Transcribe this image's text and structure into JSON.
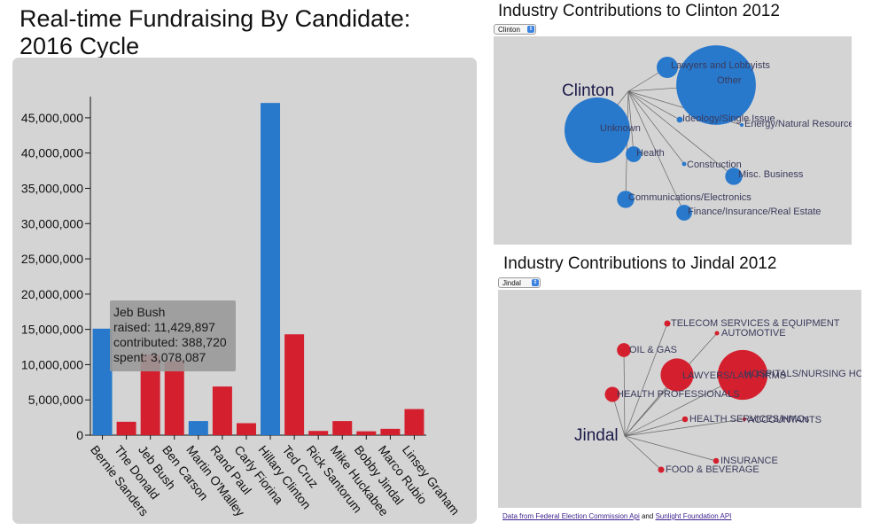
{
  "page": {
    "title_line1": "Real-time Fundraising By Candidate:",
    "title_line2": "2016 Cycle"
  },
  "colors": {
    "dem": "#2878cc",
    "rep": "#d4202e",
    "panel": "#d4d4d4",
    "node_label": "#3a3a5c",
    "center_label": "#1a1a4a"
  },
  "chart_data": {
    "type": "bar",
    "title": "Real-time Fundraising By Candidate: 2016 Cycle",
    "categories": [
      "Bernie Sanders",
      "The Donald",
      "Jeb Bush",
      "Ben Carson",
      "Martin O'Malley",
      "Rand Paul",
      "Carly Fiorina",
      "Hillary Clinton",
      "Ted Cruz",
      "Rick Santorum",
      "Mike Huckabee",
      "Bobby Jindal",
      "Marco Rubio",
      "Linsey Graham"
    ],
    "party": [
      "D",
      "R",
      "R",
      "R",
      "D",
      "R",
      "R",
      "D",
      "R",
      "R",
      "R",
      "R",
      "R",
      "R"
    ],
    "values": [
      15100000,
      1900000,
      11429897,
      10500000,
      2000000,
      6900000,
      1700000,
      47100000,
      14300000,
      600000,
      2000000,
      550000,
      900000,
      3700000
    ],
    "ylim": [
      0,
      47500000
    ],
    "yticks": [
      0,
      5000000,
      10000000,
      15000000,
      20000000,
      25000000,
      30000000,
      35000000,
      40000000,
      45000000
    ],
    "ytick_labels": [
      "0",
      "5,000,000",
      "10,000,000",
      "15,000,000",
      "20,000,000",
      "25,000,000",
      "30,000,000",
      "35,000,000",
      "40,000,000",
      "45,000,000"
    ],
    "tooltip": {
      "category": "Jeb Bush",
      "lines": [
        "Jeb Bush",
        "raised: 11,429,897",
        "contributed: 388,720",
        "spent: 3,078,087"
      ]
    }
  },
  "clinton_network": {
    "title": "Industry Contributions to Clinton 2012",
    "select_value": "Clinton",
    "center_label": "Clinton",
    "nodes": [
      {
        "label": "Lawyers and Lobbyists",
        "amount": 1.0
      },
      {
        "label": "Other",
        "amount": 14.0
      },
      {
        "label": "Ideology/Single Issue",
        "amount": 0.08
      },
      {
        "label": "Energy/Natural Resource",
        "amount": 0.03
      },
      {
        "label": "Unknown",
        "amount": 9.5
      },
      {
        "label": "Health",
        "amount": 0.55
      },
      {
        "label": "Construction",
        "amount": 0.04
      },
      {
        "label": "Misc. Business",
        "amount": 0.65
      },
      {
        "label": "Communications/Electronics",
        "amount": 0.65
      },
      {
        "label": "Finance/Insurance/Real Estate",
        "amount": 0.55
      }
    ]
  },
  "jindal_network": {
    "title": "Industry Contributions to Jindal 2012",
    "select_value": "Jindal",
    "center_label": "Jindal",
    "nodes": [
      {
        "label": "TELECOM SERVICES & EQUIPMENT",
        "amount": 0.35
      },
      {
        "label": "AUTOMOTIVE",
        "amount": 0.18
      },
      {
        "label": "OIL & GAS",
        "amount": 1.7
      },
      {
        "label": "LAWYERS/LAW FIRMS",
        "amount": 9.6
      },
      {
        "label": "HOSPITALS/NURSING HOMES",
        "amount": 22.0
      },
      {
        "label": "HEALTH PROFESSIONALS",
        "amount": 2.0
      },
      {
        "label": "HEALTH SERVICES/HMOs",
        "amount": 0.3
      },
      {
        "label": "ACCOUNTANTS",
        "amount": 0.12
      },
      {
        "label": "INSURANCE",
        "amount": 0.3
      },
      {
        "label": "FOOD & BEVERAGE",
        "amount": 0.35
      }
    ]
  },
  "footer": {
    "link1": "Data from Federal Election Commission Api",
    "and": "and",
    "link2": "Sunlight Foundation API"
  }
}
